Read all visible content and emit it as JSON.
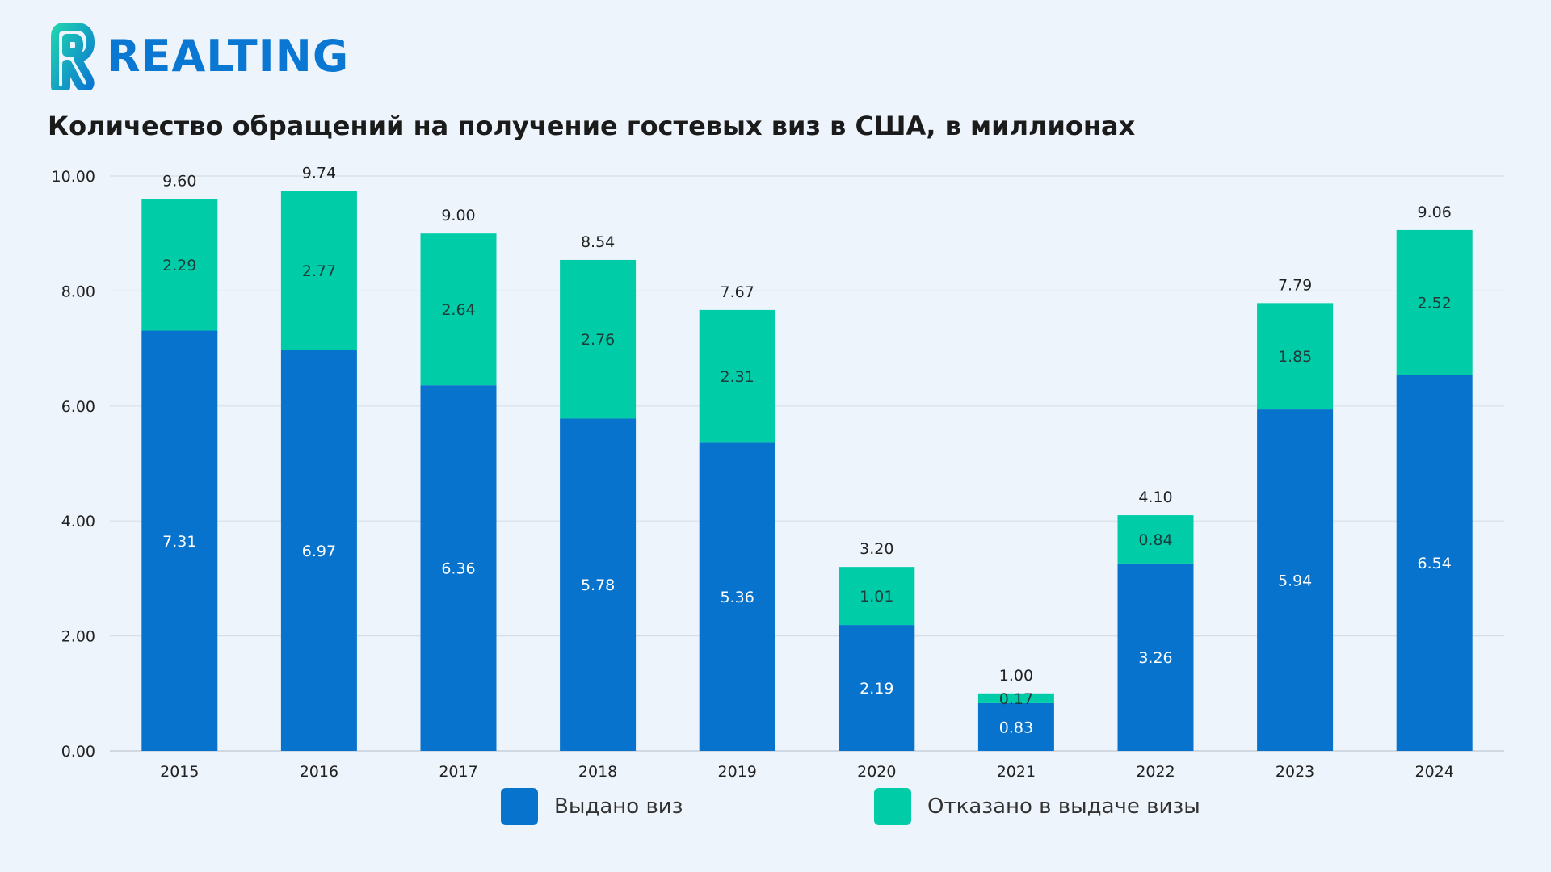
{
  "brand": {
    "name": "REALTING",
    "color": "#0a77d2",
    "accent": "#00c9a7"
  },
  "title": "Количество обращений на получение гостевых виз в США, в миллионах",
  "legend": {
    "issued_label": "Выдано виз",
    "refused_label": "Отказано в выдаче визы",
    "issued_color": "#0873cc",
    "refused_color": "#00cca8"
  },
  "chart_data": {
    "type": "bar",
    "stacked": true,
    "categories": [
      "2015",
      "2016",
      "2017",
      "2018",
      "2019",
      "2020",
      "2021",
      "2022",
      "2023",
      "2024"
    ],
    "series": [
      {
        "name": "Выдано виз",
        "values": [
          7.31,
          6.97,
          6.36,
          5.78,
          5.36,
          2.19,
          0.83,
          3.26,
          5.94,
          6.54
        ],
        "color": "#0873cc"
      },
      {
        "name": "Отказано в выдаче визы",
        "values": [
          2.29,
          2.77,
          2.64,
          2.76,
          2.31,
          1.01,
          0.17,
          0.84,
          1.85,
          2.52
        ],
        "color": "#00cca8"
      }
    ],
    "totals": [
      9.6,
      9.74,
      9.0,
      8.54,
      7.67,
      3.2,
      1.0,
      4.1,
      7.79,
      9.06
    ],
    "y_ticks": [
      "0.00",
      "2.00",
      "4.00",
      "6.00",
      "8.00",
      "10.00"
    ],
    "ylim": [
      0,
      10
    ],
    "grid": true,
    "legend_position": "bottom"
  }
}
